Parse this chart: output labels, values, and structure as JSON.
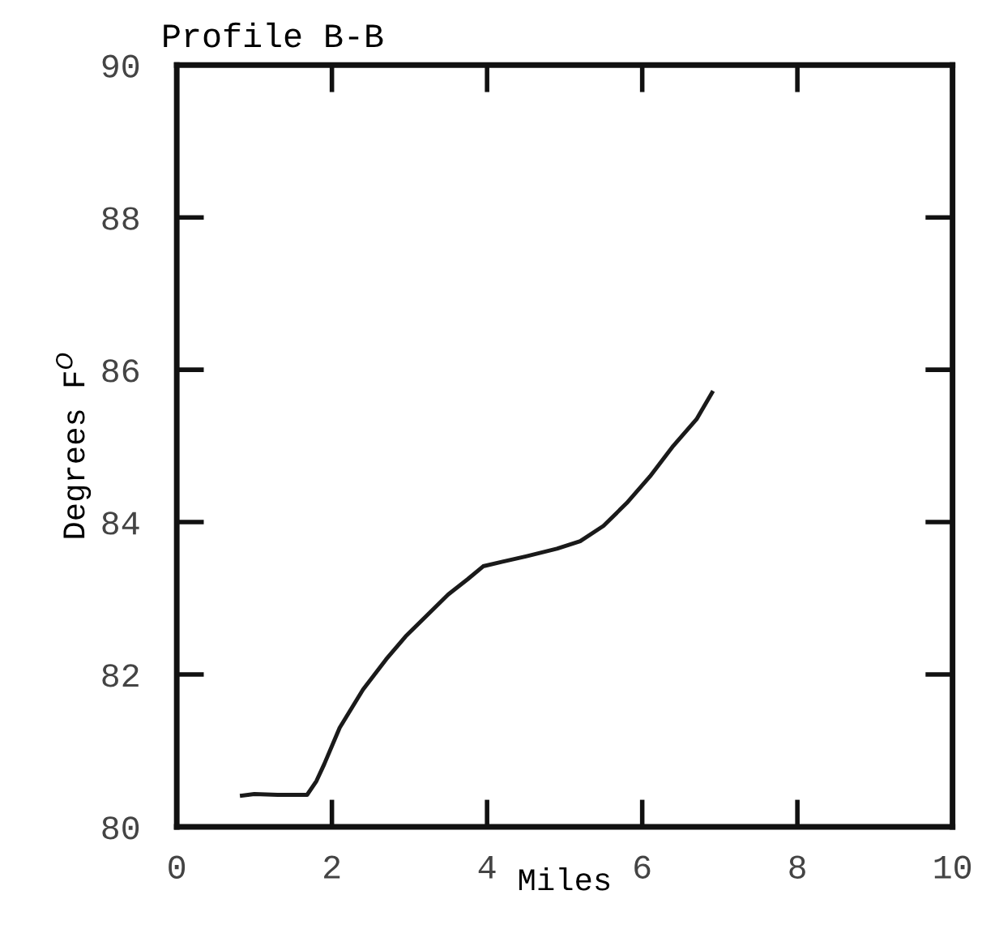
{
  "chart_data": {
    "type": "line",
    "title": "Profile B-B",
    "xlabel": "Miles",
    "ylabel": "Degrees F$^{O}$",
    "series": [
      {
        "color": "#1a1a1a",
        "x": [
          0.84,
          1.0,
          1.3,
          1.68,
          1.8,
          1.9,
          2.1,
          2.4,
          2.7,
          2.95,
          3.2,
          3.5,
          3.75,
          3.95,
          4.2,
          4.5,
          4.9,
          5.2,
          5.5,
          5.8,
          6.1,
          6.4,
          6.7,
          6.9
        ],
        "values": [
          80.41,
          80.43,
          80.42,
          80.42,
          80.6,
          80.82,
          81.3,
          81.8,
          82.2,
          82.5,
          82.75,
          83.05,
          83.25,
          83.42,
          83.48,
          83.55,
          83.65,
          83.75,
          83.95,
          84.25,
          84.6,
          85.0,
          85.35,
          85.7
        ]
      }
    ],
    "xlim": [
      0,
      10
    ],
    "xticks": [
      0,
      2,
      4,
      6,
      8,
      10
    ],
    "ylim": [
      80,
      90
    ],
    "yticks": [
      80,
      82,
      84,
      86,
      88,
      90
    ],
    "grid": false,
    "marker": "none",
    "line_style": "solid"
  }
}
